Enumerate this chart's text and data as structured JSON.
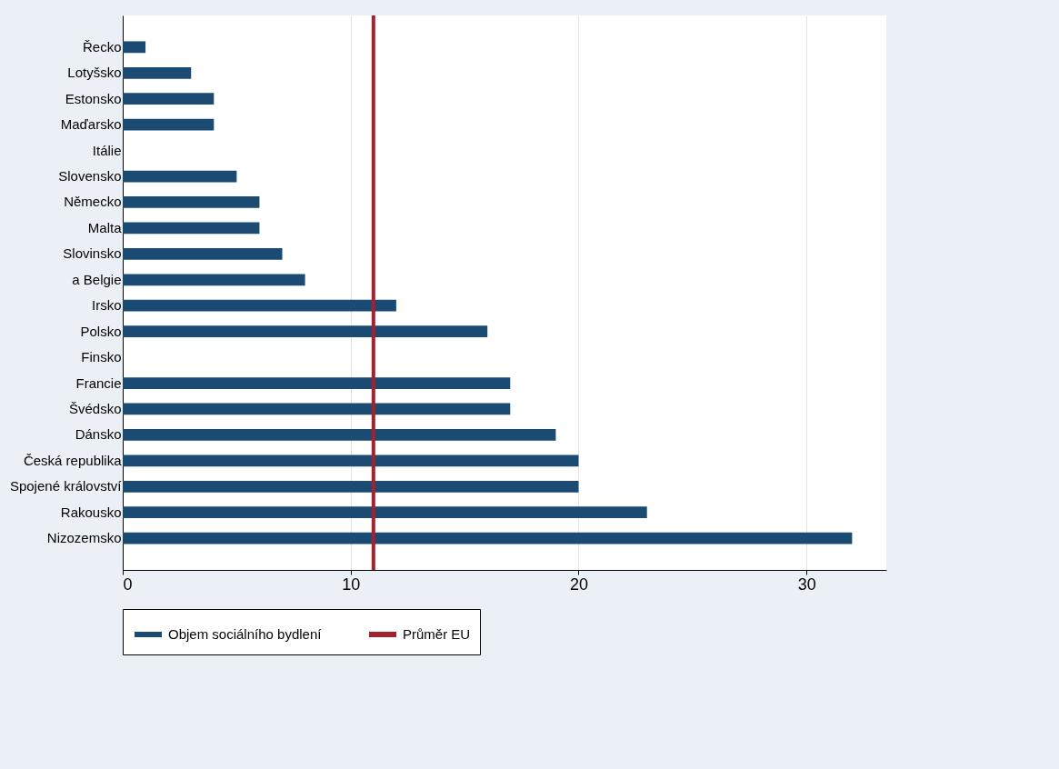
{
  "chart_data": {
    "type": "bar",
    "orientation": "horizontal",
    "categories": [
      "Řecko",
      "Lotyšsko",
      "Estonsko",
      "Maďarsko",
      "Itálie",
      "Slovensko",
      "Německo",
      "Malta",
      "Slovinsko",
      "a Belgie",
      "Irsko",
      "Polsko",
      "Finsko",
      "Francie",
      "Švédsko",
      "Dánsko",
      "Česká republika",
      "Spojené království",
      "Rakousko",
      "Nizozemsko"
    ],
    "series": [
      {
        "name": "Objem sociálního bydlení",
        "color": "#1b4a72",
        "values": [
          1,
          3,
          4,
          4,
          null,
          5,
          6,
          6,
          7,
          8,
          12,
          16,
          null,
          17,
          17,
          19,
          20,
          20,
          23,
          32
        ]
      }
    ],
    "xlim": [
      0,
      33.5
    ],
    "xticks": [
      0,
      10,
      20,
      30
    ],
    "grid": "x",
    "legend": "bottom",
    "ref_lines": [
      {
        "axis": "x",
        "value": 11,
        "label": "Průměr EU",
        "color": "#a3222e"
      }
    ]
  }
}
